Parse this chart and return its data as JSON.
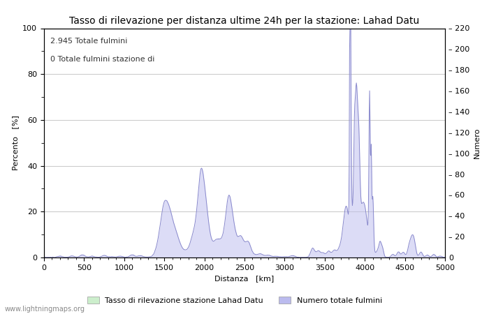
{
  "title": "Tasso di rilevazione per distanza ultime 24h per la stazione: Lahad Datu",
  "xlabel": "Distanza   [km]",
  "ylabel_left": "Percento   [%]",
  "ylabel_right": "Numero",
  "annotation_line1": "2.945 Totale fulmini",
  "annotation_line2": "0 Totale fulmini stazione di",
  "xlim": [
    0,
    5000
  ],
  "ylim_left": [
    0,
    100
  ],
  "ylim_right": [
    0,
    220
  ],
  "xticks": [
    0,
    500,
    1000,
    1500,
    2000,
    2500,
    3000,
    3500,
    4000,
    4500,
    5000
  ],
  "yticks_left": [
    0,
    20,
    40,
    60,
    80,
    100
  ],
  "yticks_right": [
    0,
    20,
    40,
    60,
    80,
    100,
    120,
    140,
    160,
    180,
    200,
    220
  ],
  "legend_label_green": "Tasso di rilevazione stazione Lahad Datu",
  "legend_label_blue": "Numero totale fulmini",
  "watermark": "www.lightningmaps.org",
  "line_color": "#8888cc",
  "fill_color_blue": "#bbbbee",
  "fill_color_green": "#cceecc",
  "bg_color": "#ffffff",
  "grid_color": "#cccccc",
  "title_fontsize": 10,
  "label_fontsize": 8,
  "tick_fontsize": 8,
  "annot_fontsize": 8
}
